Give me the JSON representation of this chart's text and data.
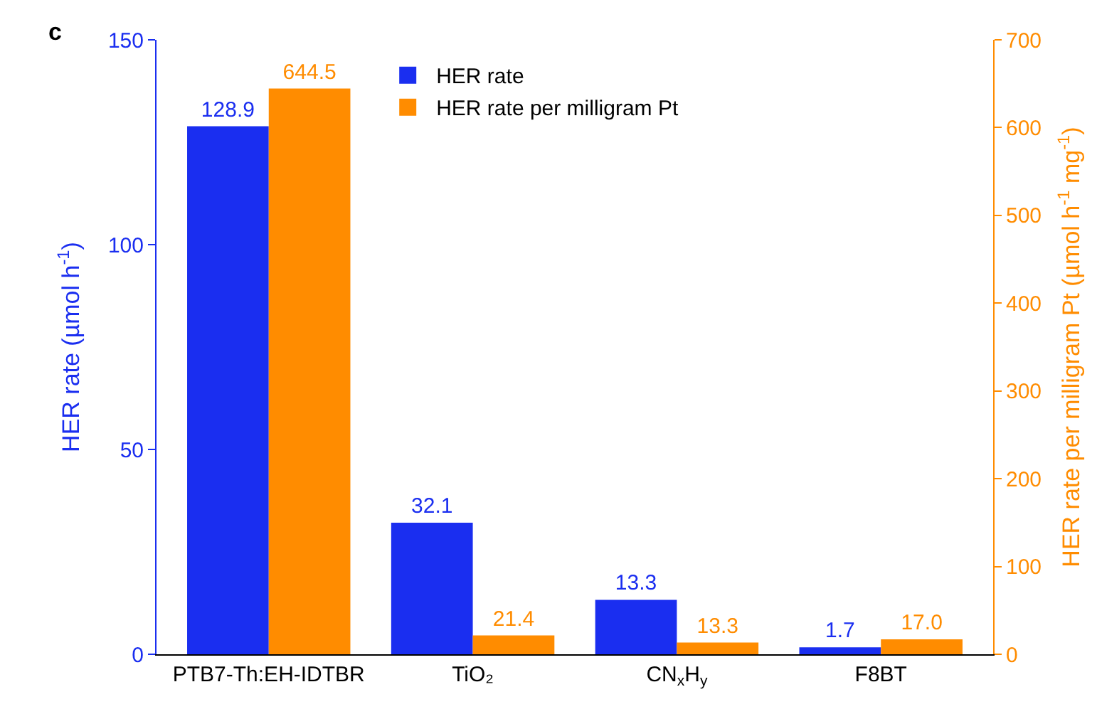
{
  "chart_data": {
    "type": "bar",
    "categories": [
      "PTB7-Th:EH-IDTBR",
      "TiO₂",
      "CN$_{x}$H$_{y}$",
      "F8BT"
    ],
    "series": [
      {
        "name": "HER rate",
        "color": "#1a2ef0",
        "values": [
          128.9,
          32.1,
          13.3,
          1.7
        ],
        "value_labels": [
          "128.9",
          "32.1",
          "13.3",
          "1.7"
        ]
      },
      {
        "name": "HER rate per milligram Pt",
        "color": "#ff8c00",
        "axis": "y2",
        "values": [
          644.5,
          21.4,
          13.3,
          17.0
        ],
        "value_labels": [
          "644.5",
          "21.4",
          "13.3",
          "17.0"
        ]
      }
    ],
    "ylabel": "HER rate (µmol h$^{-1}$)",
    "y2label": "HER rate per milligram Pt (µmol h$^{-1}$ mg$^{-1}$)",
    "ylim": [
      0,
      150
    ],
    "yticks": [
      0,
      50,
      100,
      150
    ],
    "y2lim": [
      0,
      700
    ],
    "y2ticks": [
      0,
      100,
      200,
      300,
      400,
      500,
      600,
      700
    ],
    "annotations": [
      "c"
    ],
    "legend": "top"
  }
}
